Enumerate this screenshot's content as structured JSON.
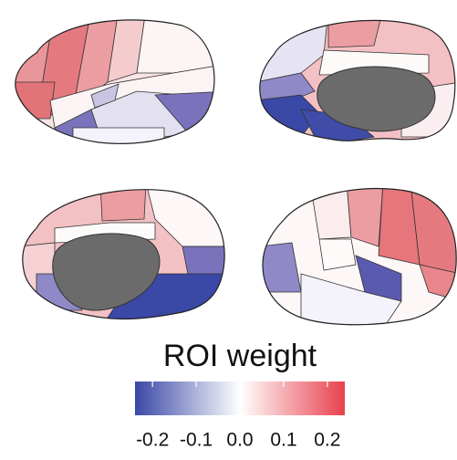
{
  "colorbar": {
    "title": "ROI weight",
    "range": [
      -0.24,
      0.24
    ],
    "colors": [
      "#3a48a6",
      "#ffffff",
      "#e8414d"
    ],
    "ticks": [
      -0.2,
      -0.1,
      {
        "value": 0,
        "label": "0.0"
      },
      0.1,
      0.2
    ]
  }
}
